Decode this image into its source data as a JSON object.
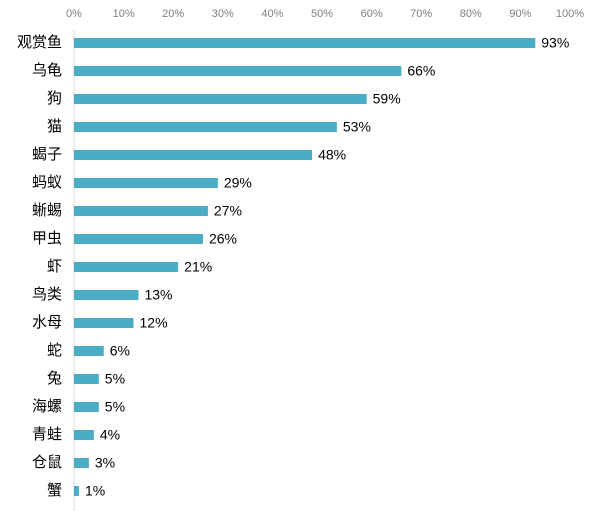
{
  "chart_data": {
    "type": "bar",
    "orientation": "horizontal",
    "color": "#4bacc6",
    "categories": [
      "观赏鱼",
      "乌龟",
      "狗",
      "猫",
      "蝎子",
      "蚂蚁",
      "蜥蜴",
      "甲虫",
      "虾",
      "鸟类",
      "水母",
      "蛇",
      "兔",
      "海螺",
      "青蛙",
      "仓鼠",
      "蟹"
    ],
    "values": [
      93,
      66,
      59,
      53,
      48,
      29,
      27,
      26,
      21,
      13,
      12,
      6,
      5,
      5,
      4,
      3,
      1
    ],
    "value_labels": [
      "93%",
      "66%",
      "59%",
      "53%",
      "48%",
      "29%",
      "27%",
      "26%",
      "21%",
      "13%",
      "12%",
      "6%",
      "5%",
      "5%",
      "4%",
      "3%",
      "1%"
    ],
    "xlim": [
      0,
      100
    ],
    "xticks": [
      {
        "value": 0,
        "label": "0%"
      },
      {
        "value": 10,
        "label": "10%"
      },
      {
        "value": 20,
        "label": "20%"
      },
      {
        "value": 30,
        "label": "30%"
      },
      {
        "value": 40,
        "label": "40%"
      },
      {
        "value": 50,
        "label": "50%"
      },
      {
        "value": 60,
        "label": "60%"
      },
      {
        "value": 70,
        "label": "70%"
      },
      {
        "value": 80,
        "label": "80%"
      },
      {
        "value": 90,
        "label": "90%"
      },
      {
        "value": 100,
        "label": "100%"
      }
    ],
    "grid": false
  }
}
